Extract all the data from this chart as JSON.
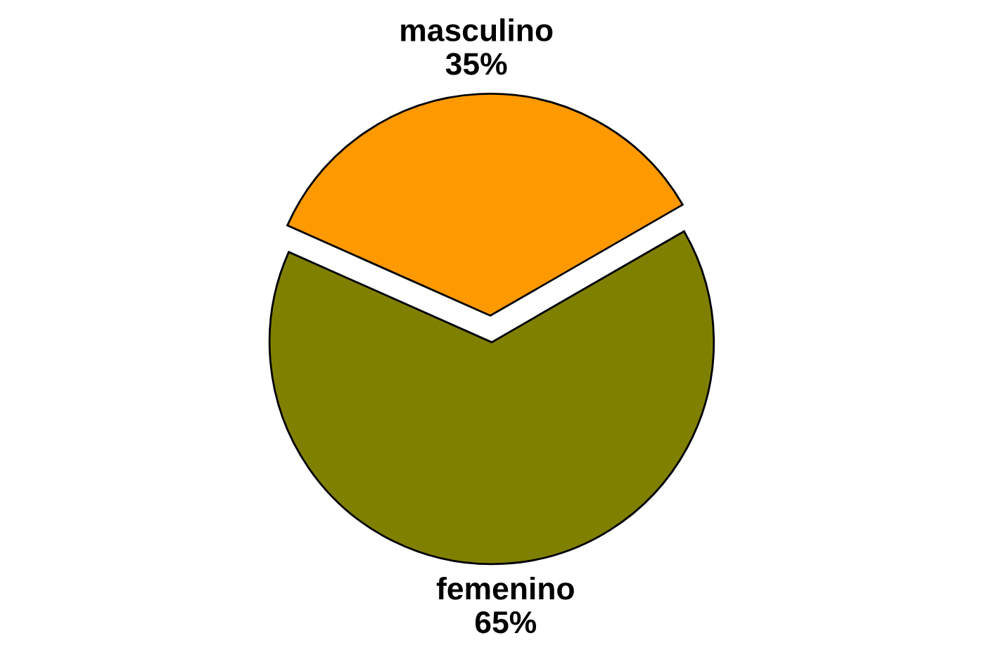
{
  "chart_data": {
    "type": "pie",
    "categories": [
      "masculino",
      "femenino"
    ],
    "values": [
      35,
      65
    ],
    "colors": [
      "#ff9900",
      "#808000"
    ],
    "value_labels": [
      "35%",
      "65%"
    ],
    "legend": false
  }
}
